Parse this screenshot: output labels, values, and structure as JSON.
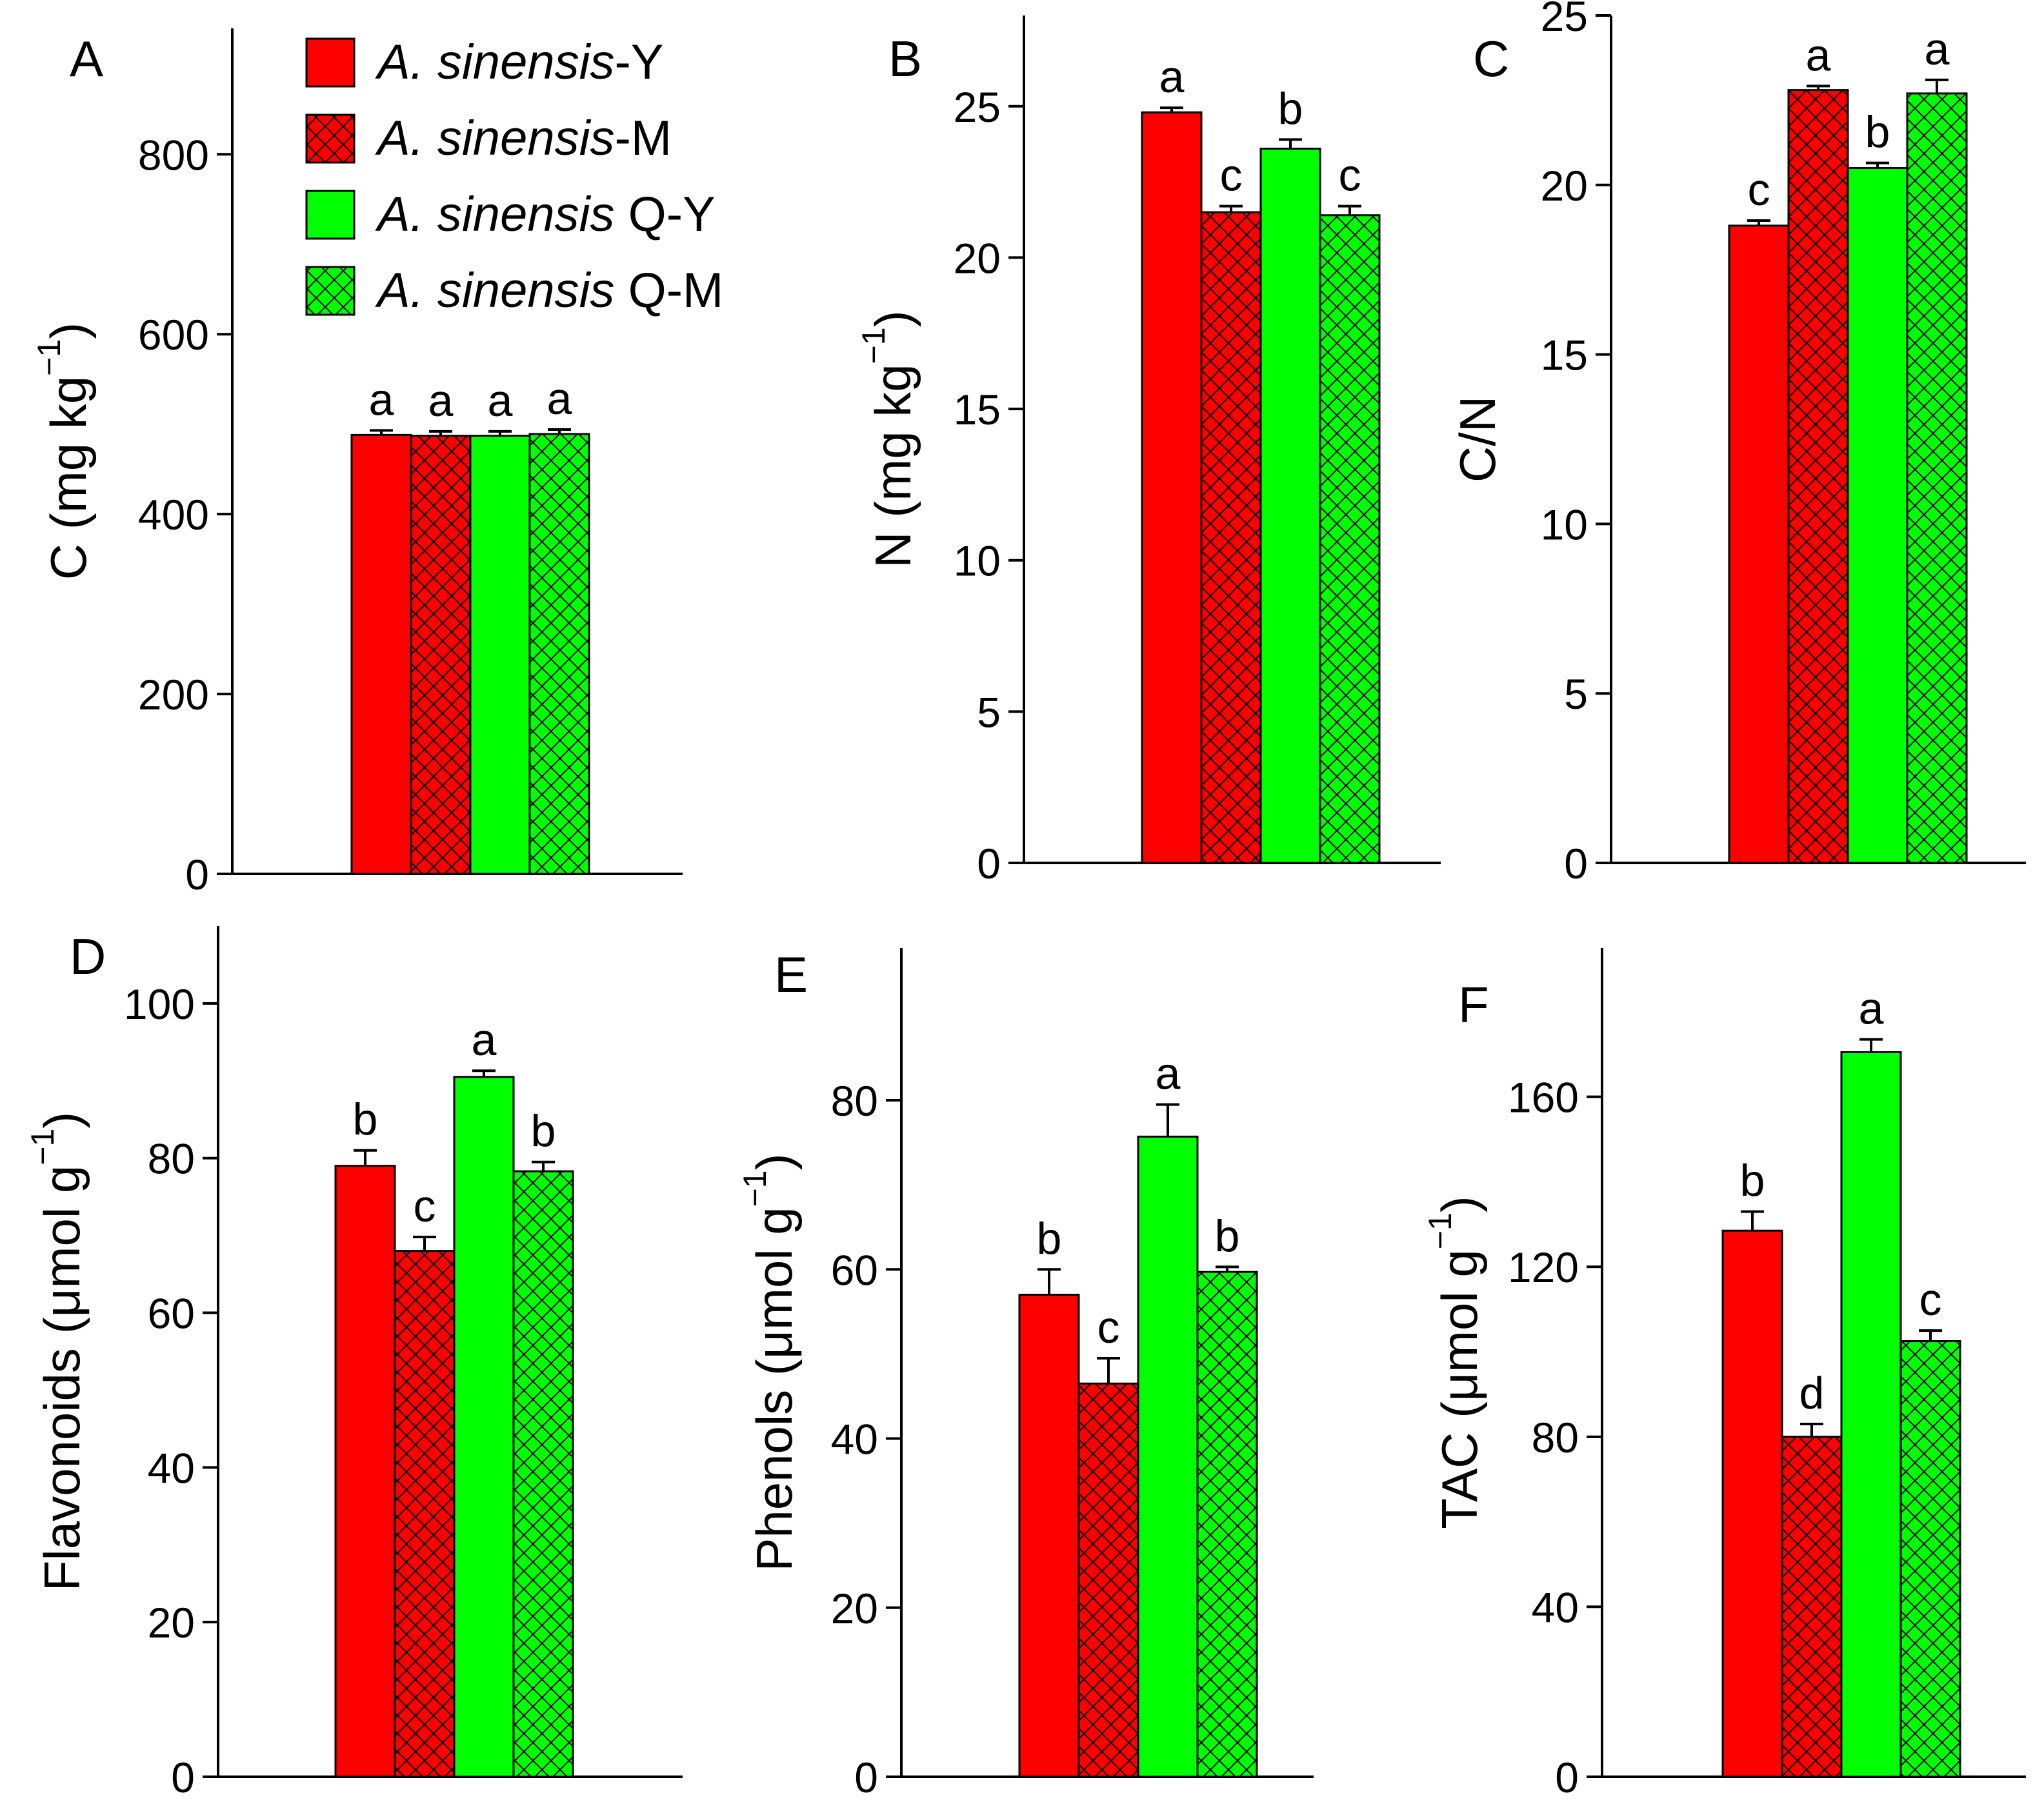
{
  "colors": {
    "red": "#ff0000",
    "green": "#00ff00",
    "hatch": "#000000",
    "axis": "#000000"
  },
  "legend": {
    "items": [
      {
        "species": "A. sinensis",
        "suffix": "-Y",
        "color": "#ff0000",
        "hatched": false
      },
      {
        "species": "A. sinensis",
        "suffix": "-M",
        "color": "#ff0000",
        "hatched": true
      },
      {
        "species": "A. sinensis",
        "suffix": " Q-Y",
        "color": "#00ff00",
        "hatched": false
      },
      {
        "species": "A. sinensis",
        "suffix": " Q-M",
        "color": "#00ff00",
        "hatched": true
      }
    ]
  },
  "chart_data": [
    {
      "id": "A",
      "type": "bar",
      "panel_label": "A",
      "ylabel_main": "C (mg kg",
      "ylabel_sup": "−1",
      "ylabel_end": ")",
      "ylim": [
        0,
        940
      ],
      "ticks": [
        0,
        200,
        400,
        600,
        800
      ],
      "series": [
        {
          "name": "A. sinensis-Y",
          "value": 488,
          "error": 5,
          "sig": "a"
        },
        {
          "name": "A. sinensis-M",
          "value": 487,
          "error": 5,
          "sig": "a"
        },
        {
          "name": "A. sinensis Q-Y",
          "value": 487,
          "error": 5,
          "sig": "a"
        },
        {
          "name": "A. sinensis Q-M",
          "value": 489,
          "error": 5,
          "sig": "a"
        }
      ]
    },
    {
      "id": "B",
      "type": "bar",
      "panel_label": "B",
      "ylabel_main": "N (mg kg",
      "ylabel_sup": "−1",
      "ylabel_end": ")",
      "ylim": [
        0,
        28
      ],
      "ticks": [
        0,
        5,
        10,
        15,
        20,
        25
      ],
      "series": [
        {
          "name": "A. sinensis-Y",
          "value": 24.8,
          "error": 0.15,
          "sig": "a"
        },
        {
          "name": "A. sinensis-M",
          "value": 21.5,
          "error": 0.2,
          "sig": "c"
        },
        {
          "name": "A. sinensis Q-Y",
          "value": 23.6,
          "error": 0.3,
          "sig": "b"
        },
        {
          "name": "A. sinensis Q-M",
          "value": 21.4,
          "error": 0.3,
          "sig": "c"
        }
      ]
    },
    {
      "id": "C",
      "type": "bar",
      "panel_label": "C",
      "ylabel_main": "C/N",
      "ylabel_sup": "",
      "ylabel_end": "",
      "ylim": [
        0,
        25
      ],
      "ticks": [
        0,
        5,
        10,
        15,
        20,
        25
      ],
      "series": [
        {
          "name": "A. sinensis-Y",
          "value": 18.8,
          "error": 0.15,
          "sig": "c"
        },
        {
          "name": "A. sinensis-M",
          "value": 22.8,
          "error": 0.12,
          "sig": "a"
        },
        {
          "name": "A. sinensis Q-Y",
          "value": 20.5,
          "error": 0.15,
          "sig": "b"
        },
        {
          "name": "A. sinensis Q-M",
          "value": 22.7,
          "error": 0.4,
          "sig": "a"
        }
      ]
    },
    {
      "id": "D",
      "type": "bar",
      "panel_label": "D",
      "ylabel_main": "Flavonoids (μmol g",
      "ylabel_sup": "−1",
      "ylabel_end": ")",
      "ylim": [
        0,
        110
      ],
      "ticks": [
        0,
        20,
        40,
        60,
        80,
        100
      ],
      "series": [
        {
          "name": "A. sinensis-Y",
          "value": 79,
          "error": 2,
          "sig": "b"
        },
        {
          "name": "A. sinensis-M",
          "value": 68,
          "error": 1.8,
          "sig": "c"
        },
        {
          "name": "A. sinensis Q-Y",
          "value": 90.5,
          "error": 0.8,
          "sig": "a"
        },
        {
          "name": "A. sinensis Q-M",
          "value": 78.3,
          "error": 1.2,
          "sig": "b"
        }
      ]
    },
    {
      "id": "E",
      "type": "bar",
      "panel_label": "E",
      "ylabel_main": "Phenols (μmol g",
      "ylabel_sup": "−1",
      "ylabel_end": ")",
      "ylim": [
        0,
        98
      ],
      "ticks": [
        0,
        20,
        40,
        60,
        80
      ],
      "series": [
        {
          "name": "A. sinensis-Y",
          "value": 57,
          "error": 3,
          "sig": "b"
        },
        {
          "name": "A. sinensis-M",
          "value": 46.5,
          "error": 3,
          "sig": "c"
        },
        {
          "name": "A. sinensis Q-Y",
          "value": 75.7,
          "error": 3.8,
          "sig": "a"
        },
        {
          "name": "A. sinensis Q-M",
          "value": 59.7,
          "error": 0.6,
          "sig": "b"
        }
      ]
    },
    {
      "id": "F",
      "type": "bar",
      "panel_label": "F",
      "ylabel_main": "TAC (μmol g",
      "ylabel_sup": "−1",
      "ylabel_end": ")",
      "ylim": [
        0,
        195
      ],
      "ticks": [
        0,
        40,
        80,
        120,
        160
      ],
      "series": [
        {
          "name": "A. sinensis-Y",
          "value": 128.5,
          "error": 4.5,
          "sig": "b"
        },
        {
          "name": "A. sinensis-M",
          "value": 80,
          "error": 3,
          "sig": "d"
        },
        {
          "name": "A. sinensis Q-Y",
          "value": 170.5,
          "error": 3,
          "sig": "a"
        },
        {
          "name": "A. sinensis Q-M",
          "value": 102.5,
          "error": 2.5,
          "sig": "c"
        }
      ]
    }
  ]
}
